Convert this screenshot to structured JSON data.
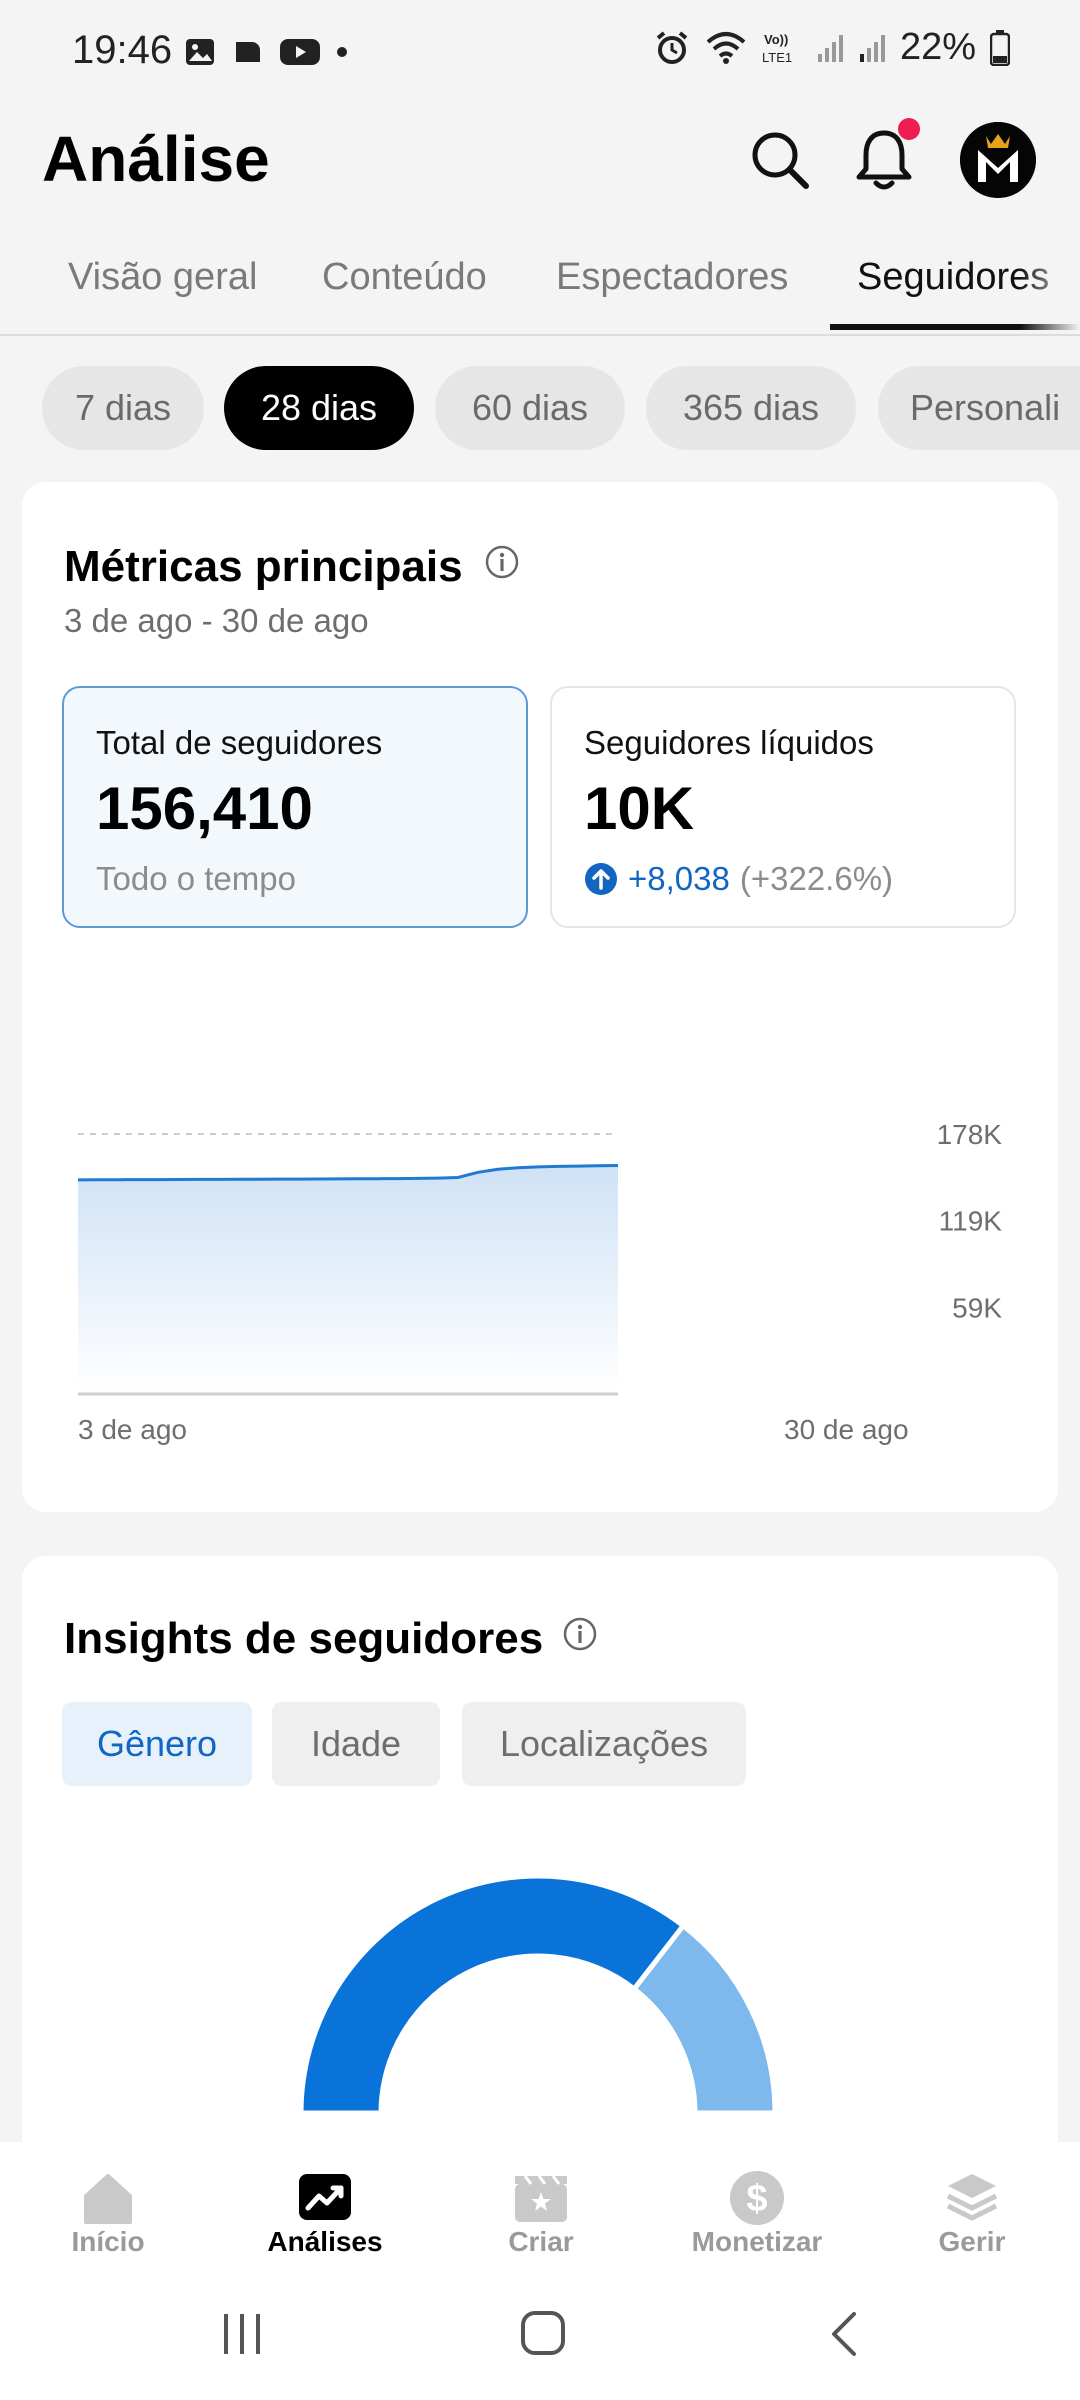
{
  "status_bar": {
    "time": "19:46",
    "battery_pct": "22%"
  },
  "header": {
    "title": "Análise"
  },
  "tabs": [
    {
      "label": "Visão geral",
      "active": false
    },
    {
      "label": "Conteúdo",
      "active": false
    },
    {
      "label": "Espectadores",
      "active": false
    },
    {
      "label": "Seguidores",
      "active": true
    }
  ],
  "range_chips": [
    {
      "label": "7 dias",
      "active": false
    },
    {
      "label": "28 dias",
      "active": true
    },
    {
      "label": "60 dias",
      "active": false
    },
    {
      "label": "365 dias",
      "active": false
    },
    {
      "label": "Personali",
      "active": false
    }
  ],
  "metrics_card": {
    "title": "Métricas principais",
    "date_range": "3 de ago - 30 de ago",
    "total": {
      "label": "Total de seguidores",
      "value": "156,410",
      "footer": "Todo o tempo"
    },
    "net": {
      "label": "Seguidores líquidos",
      "value": "10K",
      "change": "+8,038",
      "change_pct": "(+322.6%)"
    }
  },
  "chart_data": {
    "type": "area",
    "x_start_label": "3 de ago",
    "x_end_label": "30 de ago",
    "y_ticks": [
      "178K",
      "119K",
      "59K"
    ],
    "ylim": [
      0,
      178000
    ],
    "x": [
      "3 de ago",
      "4 de ago",
      "5 de ago",
      "6 de ago",
      "7 de ago",
      "8 de ago",
      "9 de ago",
      "10 de ago",
      "11 de ago",
      "12 de ago",
      "13 de ago",
      "14 de ago",
      "15 de ago",
      "16 de ago",
      "17 de ago",
      "18 de ago",
      "19 de ago",
      "20 de ago",
      "21 de ago",
      "22 de ago",
      "23 de ago",
      "24 de ago",
      "25 de ago",
      "26 de ago",
      "27 de ago",
      "28 de ago",
      "29 de ago",
      "30 de ago"
    ],
    "values": [
      146600,
      146650,
      146700,
      146750,
      146800,
      146850,
      146900,
      146950,
      147000,
      147050,
      147100,
      147150,
      147200,
      147250,
      147300,
      147400,
      147500,
      147600,
      147800,
      148200,
      151800,
      153800,
      154900,
      155500,
      155800,
      156000,
      156200,
      156410
    ],
    "grid": true,
    "color": "#1f7ad1",
    "fill_color": "#cfe2f6"
  },
  "insights_card": {
    "title": "Insights de seguidores",
    "segments": [
      {
        "label": "Gênero",
        "active": true
      },
      {
        "label": "Idade",
        "active": false
      },
      {
        "label": "Localizações",
        "active": false
      }
    ],
    "donut": {
      "colors": [
        "#0a73d9",
        "#7db9ec"
      ],
      "shares": [
        0.71,
        0.29
      ]
    }
  },
  "bottom_nav": [
    {
      "label": "Início",
      "icon": "home-icon",
      "active": false
    },
    {
      "label": "Análises",
      "icon": "analytics-icon",
      "active": true
    },
    {
      "label": "Criar",
      "icon": "create-icon",
      "active": false
    },
    {
      "label": "Monetizar",
      "icon": "dollar-icon",
      "active": false
    },
    {
      "label": "Gerir",
      "icon": "layers-icon",
      "active": false
    }
  ]
}
